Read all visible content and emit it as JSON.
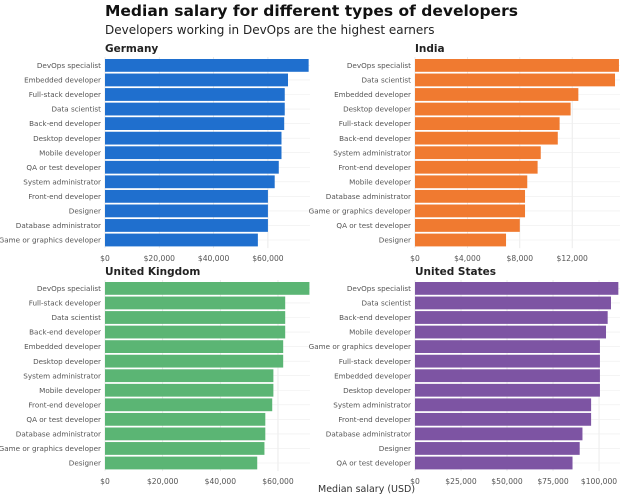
{
  "title": "Median salary for different types of developers",
  "subtitle": "Developers working in DevOps are the highest earners",
  "xlabel": "Median salary (USD)",
  "chart_data": [
    {
      "type": "bar",
      "orientation": "horizontal",
      "title": "Germany",
      "color": "#1f6fce",
      "xlim": [
        0,
        75500
      ],
      "ticks": [
        0,
        20000,
        40000,
        60000
      ],
      "tick_labels": [
        "$0",
        "$20,000",
        "$40,000",
        "$60,000"
      ],
      "categories": [
        "DevOps specialist",
        "Embedded developer",
        "Full-stack developer",
        "Data scientist",
        "Back-end developer",
        "Desktop developer",
        "Mobile developer",
        "QA or test developer",
        "System administrator",
        "Front-end developer",
        "Designer",
        "Database administrator",
        "Game or graphics developer"
      ],
      "values": [
        75000,
        67400,
        66200,
        66200,
        66000,
        65000,
        65000,
        64000,
        62500,
        60000,
        60000,
        60000,
        56300
      ]
    },
    {
      "type": "bar",
      "orientation": "horizontal",
      "title": "India",
      "color": "#f07a30",
      "xlim": [
        0,
        15650
      ],
      "ticks": [
        0,
        4000,
        8000,
        12000
      ],
      "tick_labels": [
        "$0",
        "$4,000",
        "$8,000",
        "$12,000"
      ],
      "categories": [
        "DevOps specialist",
        "Data scientist",
        "Embedded developer",
        "Desktop developer",
        "Full-stack developer",
        "Back-end developer",
        "System administrator",
        "Front-end developer",
        "Mobile developer",
        "Database administrator",
        "Game or graphics developer",
        "QA or test developer",
        "Designer"
      ],
      "values": [
        15570,
        15270,
        12470,
        11880,
        11040,
        10900,
        9600,
        9360,
        8570,
        8400,
        8400,
        8000,
        6950
      ]
    },
    {
      "type": "bar",
      "orientation": "horizontal",
      "title": "United Kingdom",
      "color": "#5bb574",
      "xlim": [
        0,
        71100
      ],
      "ticks": [
        0,
        20000,
        40000,
        60000
      ],
      "tick_labels": [
        "$0",
        "$20,000",
        "$40,000",
        "$60,000"
      ],
      "categories": [
        "DevOps specialist",
        "Full-stack developer",
        "Data scientist",
        "Back-end developer",
        "Embedded developer",
        "Desktop developer",
        "System administrator",
        "Mobile developer",
        "Front-end developer",
        "QA or test developer",
        "Database administrator",
        "Game or graphics developer",
        "Designer"
      ],
      "values": [
        70900,
        62500,
        62500,
        62500,
        61800,
        61800,
        58400,
        58400,
        58000,
        55600,
        55600,
        55300,
        52800
      ]
    },
    {
      "type": "bar",
      "orientation": "horizontal",
      "title": "United States",
      "color": "#7d54a3",
      "xlim": [
        0,
        111400
      ],
      "ticks": [
        0,
        25000,
        50000,
        75000,
        100000
      ],
      "tick_labels": [
        "$0",
        "$25,000",
        "$50,000",
        "$75,000",
        "$100,000"
      ],
      "categories": [
        "DevOps specialist",
        "Data scientist",
        "Back-end developer",
        "Mobile developer",
        "Game or graphics developer",
        "Full-stack developer",
        "Embedded developer",
        "Desktop developer",
        "System administrator",
        "Front-end developer",
        "Database administrator",
        "Designer",
        "QA or test developer"
      ],
      "values": [
        110500,
        106500,
        104700,
        103800,
        100500,
        100500,
        100500,
        100500,
        95700,
        95700,
        91000,
        89500,
        85600
      ]
    }
  ]
}
